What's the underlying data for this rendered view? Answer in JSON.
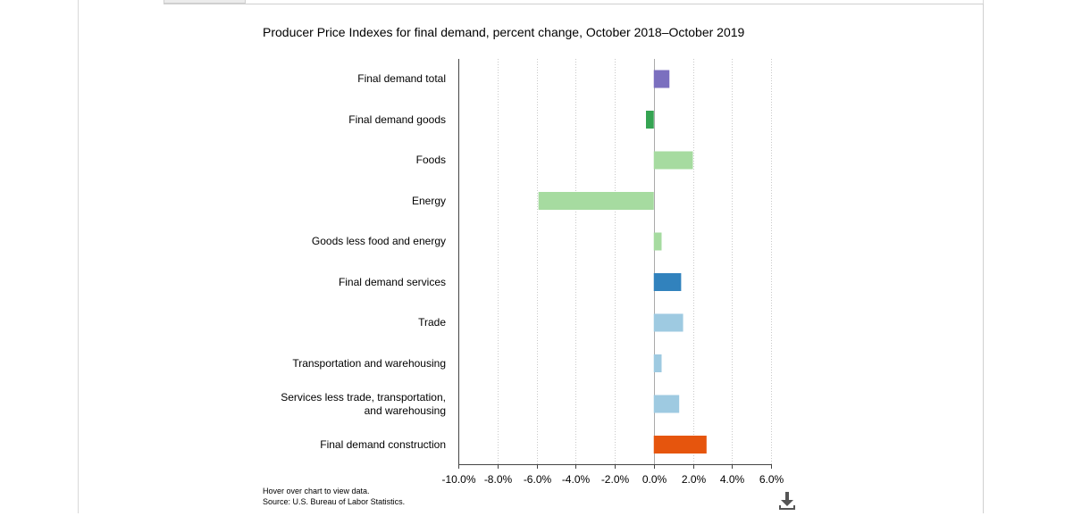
{
  "chart_data": {
    "type": "bar",
    "orientation": "horizontal",
    "title": "Producer Price Indexes for final demand, percent change, October 2018–October 2019",
    "xlabel": "",
    "ylabel": "",
    "xlim": [
      -10,
      6
    ],
    "x_ticks": [
      -10,
      -8,
      -6,
      -4,
      -2,
      0,
      2,
      4,
      6
    ],
    "x_tick_labels": [
      "-10.0%",
      "-8.0%",
      "-6.0%",
      "-4.0%",
      "-2.0%",
      "0.0%",
      "2.0%",
      "4.0%",
      "6.0%"
    ],
    "grid": true,
    "categories": [
      "Final demand total",
      "Final demand goods",
      "Foods",
      "Energy",
      "Goods less food and energy",
      "Final demand services",
      "Trade",
      "Transportation and warehousing",
      "Services less trade, transportation, and warehousing",
      "Final demand construction"
    ],
    "category_lines": [
      [
        "Final demand total"
      ],
      [
        "Final demand goods"
      ],
      [
        "Foods"
      ],
      [
        "Energy"
      ],
      [
        "Goods less food and energy"
      ],
      [
        "Final demand services"
      ],
      [
        "Trade"
      ],
      [
        "Transportation and warehousing"
      ],
      [
        "Services less trade, transportation,",
        "and warehousing"
      ],
      [
        "Final demand construction"
      ]
    ],
    "values": [
      0.8,
      -0.4,
      2.0,
      -5.9,
      0.4,
      1.4,
      1.5,
      0.4,
      1.3,
      2.7
    ],
    "colors": [
      "#7b6fbf",
      "#35a452",
      "#a6dba0",
      "#a6dba0",
      "#a6dba0",
      "#3182bd",
      "#9ecae1",
      "#9ecae1",
      "#9ecae1",
      "#e6550d"
    ]
  },
  "footnotes": {
    "hover": "Hover over chart to view data.",
    "source": "Source: U.S. Bureau of Labor Statistics."
  },
  "download_icon": "download-icon"
}
